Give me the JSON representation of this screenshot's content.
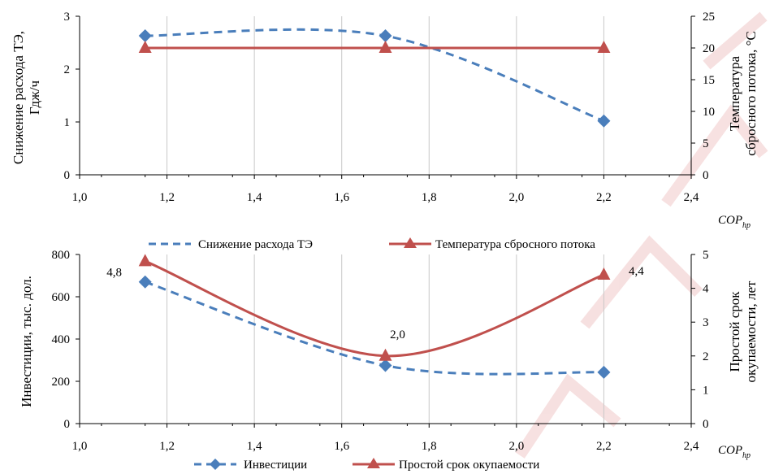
{
  "watermark_colors": [
    "#e8a8a8"
  ],
  "chart_data": [
    {
      "type": "line",
      "x_label": "COP",
      "x_label_sub": "hp",
      "xlim": [
        1.0,
        2.4
      ],
      "x_ticks": [
        "1,0",
        "1,2",
        "1,4",
        "1,6",
        "1,8",
        "2,0",
        "2,2",
        "2,4"
      ],
      "y_left_label_lines": [
        "Снижение расхода ТЭ,",
        "Гдж/ч"
      ],
      "y_left_lim": [
        0,
        3
      ],
      "y_left_ticks": [
        "0",
        "1",
        "2",
        "3"
      ],
      "y_right_label_lines": [
        "Температура",
        "сбросного потока, °С"
      ],
      "y_right_lim": [
        0,
        25
      ],
      "y_right_ticks": [
        "0",
        "5",
        "10",
        "15",
        "20",
        "25"
      ],
      "grid": "vertical",
      "legend_position": "bottom",
      "series": [
        {
          "name": "Снижение расхода ТЭ",
          "axis": "left",
          "style": "dashed",
          "marker": "diamond",
          "color": "#4a7ebb",
          "x": [
            1.15,
            1.7,
            2.2
          ],
          "y": [
            2.63,
            2.63,
            1.02
          ]
        },
        {
          "name": "Температура  сбросного потока",
          "axis": "right",
          "style": "solid",
          "marker": "triangle",
          "color": "#c0504d",
          "x": [
            1.15,
            1.7,
            2.2
          ],
          "y": [
            20,
            20,
            20
          ]
        }
      ]
    },
    {
      "type": "line",
      "x_label": "COP",
      "x_label_sub": "hp",
      "xlim": [
        1.0,
        2.4
      ],
      "x_ticks": [
        "1,0",
        "1,2",
        "1,4",
        "1,6",
        "1,8",
        "2,0",
        "2,2",
        "2,4"
      ],
      "y_left_label_lines": [
        "Инвестиции, тыс. дол."
      ],
      "y_left_lim": [
        0,
        800
      ],
      "y_left_ticks": [
        "0",
        "200",
        "400",
        "600",
        "800"
      ],
      "y_right_label_lines": [
        "Простой срок",
        "окупаемости, лет"
      ],
      "y_right_lim": [
        0,
        5
      ],
      "y_right_ticks": [
        "0",
        "1",
        "2",
        "3",
        "4",
        "5"
      ],
      "grid": "vertical",
      "legend_position": "bottom",
      "series": [
        {
          "name": "Инвестиции",
          "axis": "left",
          "style": "dashed",
          "marker": "diamond",
          "color": "#4a7ebb",
          "x": [
            1.15,
            1.7,
            2.2
          ],
          "y": [
            670,
            275,
            243
          ]
        },
        {
          "name": "Простой срок окупаемости",
          "axis": "right",
          "style": "solid",
          "marker": "triangle",
          "color": "#c0504d",
          "x": [
            1.15,
            1.7,
            2.2
          ],
          "y": [
            4.8,
            2.0,
            4.4
          ],
          "data_labels": [
            "4,8",
            "2,0",
            "4,4"
          ]
        }
      ]
    }
  ]
}
